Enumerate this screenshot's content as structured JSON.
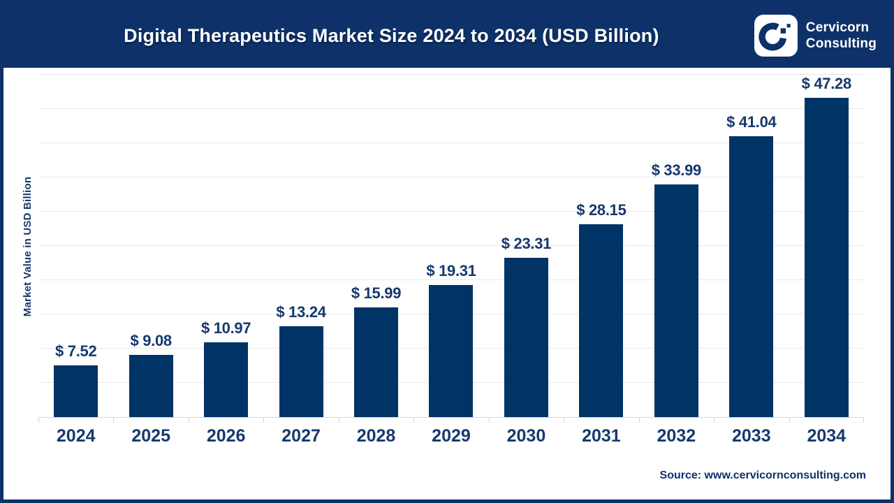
{
  "header": {
    "title": "Digital Therapeutics Market Size 2024 to 2034 (USD Billion)",
    "brand": {
      "line1": "Cervicorn",
      "line2": "Consulting"
    }
  },
  "chart_data": {
    "type": "bar",
    "title": "Digital Therapeutics Market Size 2024 to 2034 (USD Billion)",
    "categories": [
      "2024",
      "2025",
      "2026",
      "2027",
      "2028",
      "2029",
      "2030",
      "2031",
      "2032",
      "2033",
      "2034"
    ],
    "values": [
      7.52,
      9.08,
      10.97,
      13.24,
      15.99,
      19.31,
      23.31,
      28.15,
      33.99,
      41.04,
      47.28
    ],
    "value_labels": [
      "$ 7.52",
      "$ 9.08",
      "$ 10.97",
      "$ 13.24",
      "$ 15.99",
      "$ 19.31",
      "$ 23.31",
      "$ 28.15",
      "$ 33.99",
      "$ 41.04",
      "$ 47.28"
    ],
    "xlabel": "",
    "ylabel": "Market Value in USD Billion",
    "ylim": [
      0,
      50
    ],
    "gridline_step": 5,
    "grid": true,
    "legend": "none"
  },
  "footer": {
    "source": "Source: www.cervicornconsulting.com"
  },
  "colors": {
    "brand_navy": "#0d3168",
    "bar_fill": "#003366",
    "label_text": "#16396d",
    "grid_line": "#e8e8e8",
    "axis_line": "#d6d6d6",
    "title_text": "#ffffff",
    "background": "#ffffff"
  }
}
